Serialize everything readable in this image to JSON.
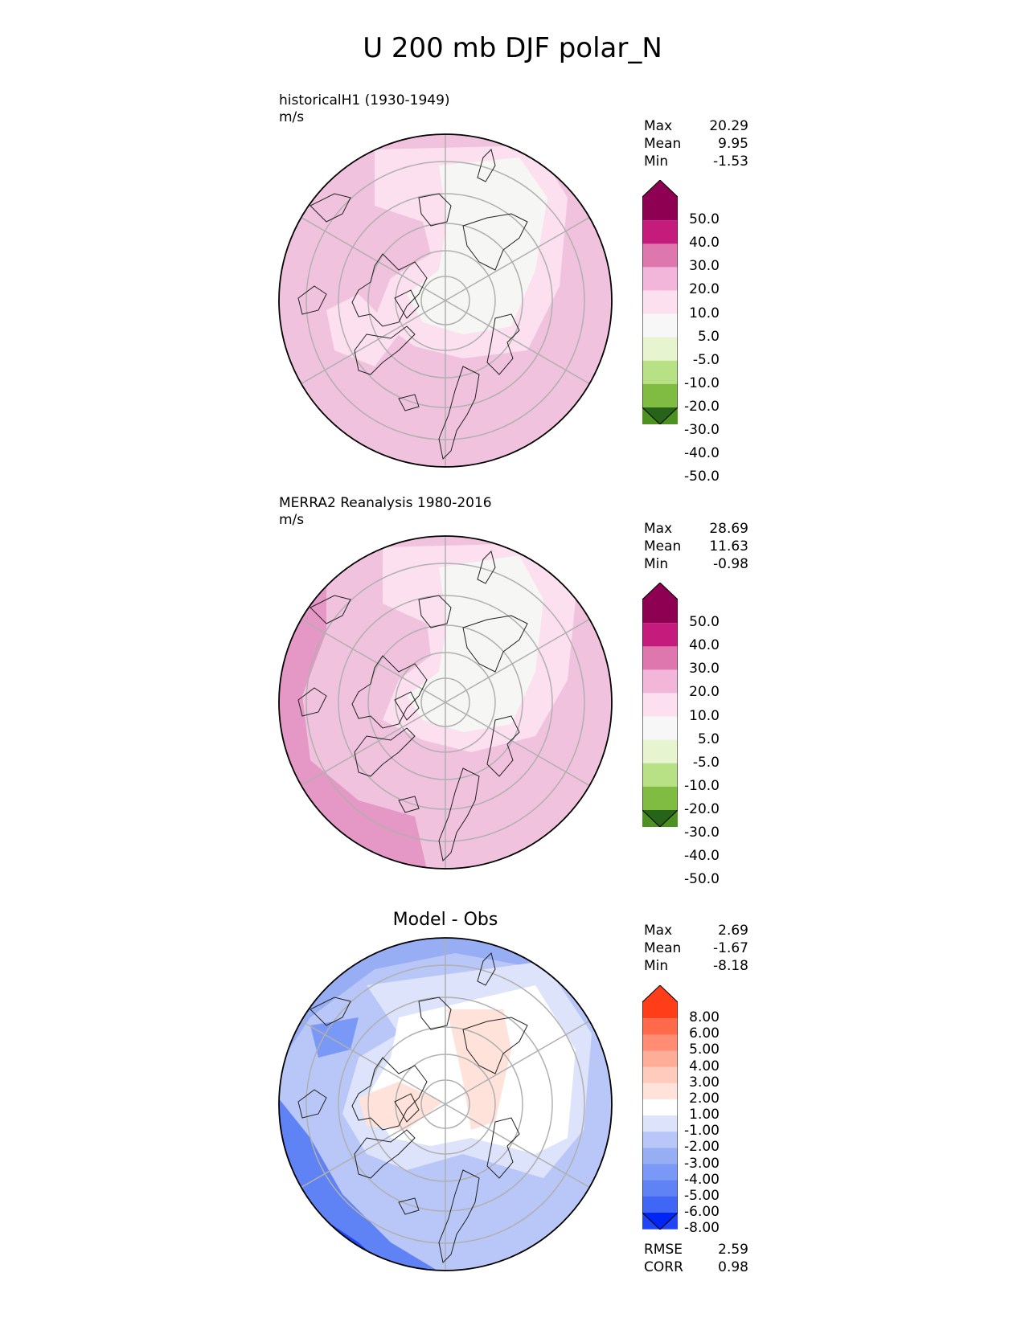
{
  "title": "U 200 mb DJF polar_N",
  "panels": [
    {
      "id": "test",
      "title": "historicalH1 (1930-1949)",
      "units": "m/s",
      "stats": [
        {
          "label": "Max",
          "value": "20.29"
        },
        {
          "label": "Mean",
          "value": "9.95"
        },
        {
          "label": "Min",
          "value": "-1.53"
        }
      ],
      "colorbar": {
        "ticks": [
          "50.0",
          "40.0",
          "30.0",
          "20.0",
          "10.0",
          "5.0",
          "-5.0",
          "-10.0",
          "-20.0",
          "-30.0",
          "-40.0",
          "-50.0"
        ],
        "colors": [
          "#8e0152",
          "#c51b7d",
          "#de77ae",
          "#f1b6da",
          "#fde0ef",
          "#f7f7f7",
          "#e6f5d0",
          "#b8e186",
          "#7fbc41",
          "#4d9221",
          "#276419"
        ]
      }
    },
    {
      "id": "ref",
      "title": "MERRA2 Reanalysis 1980-2016",
      "units": "m/s",
      "stats": [
        {
          "label": "Max",
          "value": "28.69"
        },
        {
          "label": "Mean",
          "value": "11.63"
        },
        {
          "label": "Min",
          "value": "-0.98"
        }
      ],
      "colorbar": {
        "ticks": [
          "50.0",
          "40.0",
          "30.0",
          "20.0",
          "10.0",
          "5.0",
          "-5.0",
          "-10.0",
          "-20.0",
          "-30.0",
          "-40.0",
          "-50.0"
        ],
        "colors": [
          "#8e0152",
          "#c51b7d",
          "#de77ae",
          "#f1b6da",
          "#fde0ef",
          "#f7f7f7",
          "#e6f5d0",
          "#b8e186",
          "#7fbc41",
          "#4d9221",
          "#276419"
        ]
      }
    },
    {
      "id": "diff",
      "title": "Model - Obs",
      "units": "",
      "stats": [
        {
          "label": "Max",
          "value": "2.69"
        },
        {
          "label": "Mean",
          "value": "-1.67"
        },
        {
          "label": "Min",
          "value": "-8.18"
        }
      ],
      "metrics": [
        {
          "label": "RMSE",
          "value": "2.59"
        },
        {
          "label": "CORR",
          "value": "0.98"
        }
      ],
      "colorbar": {
        "ticks": [
          "8.00",
          "6.00",
          "5.00",
          "4.00",
          "3.00",
          "2.00",
          "1.00",
          "-1.00",
          "-2.00",
          "-3.00",
          "-4.00",
          "-5.00",
          "-6.00",
          "-8.00"
        ],
        "colors": [
          "#ff3d19",
          "#ff6a4b",
          "#ff8c73",
          "#ffad98",
          "#ffcbbd",
          "#ffe3db",
          "#ffffff",
          "#dde3fb",
          "#b8c7f7",
          "#97aef5",
          "#7a98f5",
          "#5f82f5",
          "#3f66f5",
          "#1f45f5",
          "#0025f5"
        ]
      }
    }
  ],
  "chart_data": [
    {
      "type": "heatmap",
      "projection": "north polar stereographic",
      "variable": "U 200 mb",
      "season": "DJF",
      "title": "historicalH1 (1930-1949)",
      "units": "m/s",
      "max": 20.29,
      "mean": 9.95,
      "min": -1.53,
      "levels": [
        -50,
        -40,
        -30,
        -20,
        -10,
        -5,
        5,
        10,
        20,
        30,
        40,
        50
      ]
    },
    {
      "type": "heatmap",
      "projection": "north polar stereographic",
      "variable": "U 200 mb",
      "season": "DJF",
      "title": "MERRA2 Reanalysis 1980-2016",
      "units": "m/s",
      "max": 28.69,
      "mean": 11.63,
      "min": -0.98,
      "levels": [
        -50,
        -40,
        -30,
        -20,
        -10,
        -5,
        5,
        10,
        20,
        30,
        40,
        50
      ]
    },
    {
      "type": "heatmap",
      "projection": "north polar stereographic",
      "title": "Model - Obs",
      "max": 2.69,
      "mean": -1.67,
      "min": -8.18,
      "rmse": 2.59,
      "corr": 0.98,
      "levels": [
        -8,
        -6,
        -5,
        -4,
        -3,
        -2,
        -1,
        1,
        2,
        3,
        4,
        5,
        6,
        8
      ]
    }
  ]
}
